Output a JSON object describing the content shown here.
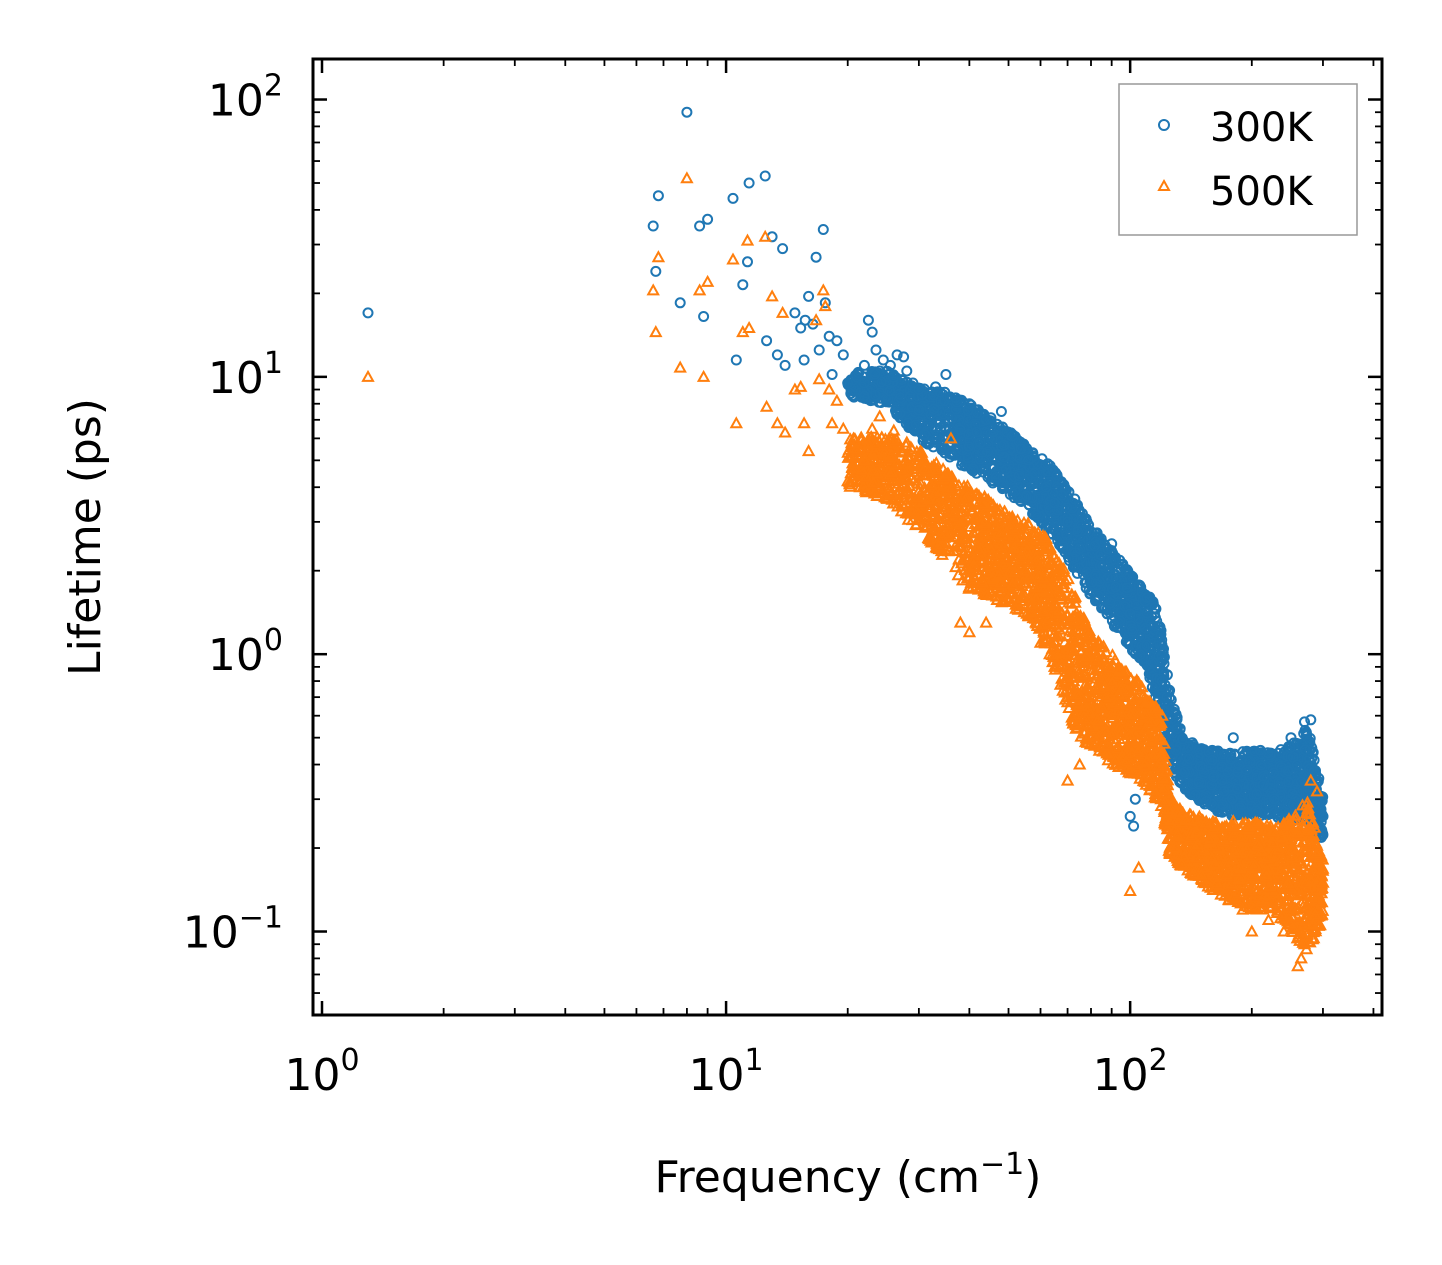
{
  "chart_data": {
    "type": "scatter",
    "title": "",
    "xlabel": "Frequency (cm",
    "xlabel_sup": "−1",
    "xlabel_end": ")",
    "ylabel": "Lifetime (ps)",
    "xscale": "log",
    "yscale": "log",
    "xlim": [
      0.95,
      420
    ],
    "ylim": [
      0.05,
      140
    ],
    "x_ticks": [
      {
        "value": 1,
        "base": "10",
        "exp": "0"
      },
      {
        "value": 10,
        "base": "10",
        "exp": "1"
      },
      {
        "value": 100,
        "base": "10",
        "exp": "2"
      }
    ],
    "y_ticks": [
      {
        "value": 0.1,
        "base": "10",
        "exp": "−1"
      },
      {
        "value": 1,
        "base": "10",
        "exp": "0"
      },
      {
        "value": 10,
        "base": "10",
        "exp": "1"
      },
      {
        "value": 100,
        "base": "10",
        "exp": "2"
      }
    ],
    "legend_position": "top-right",
    "series": [
      {
        "name": "300K",
        "marker": "circle",
        "color": "#1f77b4",
        "points": [
          [
            1.3,
            17
          ],
          [
            6.6,
            35
          ],
          [
            6.7,
            24
          ],
          [
            6.8,
            45
          ],
          [
            7.7,
            18.5
          ],
          [
            8.0,
            90
          ],
          [
            8.6,
            35
          ],
          [
            8.8,
            16.5
          ],
          [
            9.0,
            37
          ],
          [
            10.4,
            44
          ],
          [
            10.6,
            11.5
          ],
          [
            11.0,
            21.5
          ],
          [
            11.3,
            26
          ],
          [
            11.4,
            50
          ],
          [
            12.5,
            53
          ],
          [
            12.6,
            13.5
          ],
          [
            13.0,
            32
          ],
          [
            13.4,
            12
          ],
          [
            13.8,
            29
          ],
          [
            14.0,
            11
          ],
          [
            14.8,
            17
          ],
          [
            15.3,
            15
          ],
          [
            15.6,
            11.5
          ],
          [
            15.7,
            16
          ],
          [
            16.0,
            19.5
          ],
          [
            16.4,
            15.5
          ],
          [
            16.7,
            27
          ],
          [
            17.0,
            12.5
          ],
          [
            17.4,
            34
          ],
          [
            17.6,
            18.5
          ],
          [
            18.0,
            14
          ],
          [
            18.3,
            10.2
          ],
          [
            18.8,
            13.5
          ],
          [
            19.5,
            12
          ],
          [
            20.0,
            9.5
          ],
          [
            21.0,
            10
          ],
          [
            22.0,
            11
          ],
          [
            22.5,
            16
          ],
          [
            23.0,
            14.5
          ],
          [
            23.5,
            12.5
          ],
          [
            24.5,
            11.5
          ],
          [
            25.5,
            11
          ],
          [
            26.5,
            12
          ],
          [
            27.5,
            11.8
          ],
          [
            28.0,
            10.5
          ],
          [
            29.0,
            9.5
          ],
          [
            30.0,
            9
          ],
          [
            33.0,
            9.2
          ],
          [
            35.0,
            10.2
          ],
          [
            37.0,
            8.4
          ],
          [
            40.0,
            8.0
          ],
          [
            44.0,
            7.0
          ],
          [
            48.0,
            7.5
          ],
          [
            51.0,
            6.1
          ],
          [
            56.0,
            5.0
          ],
          [
            58.0,
            4.5
          ],
          [
            62.0,
            4.0
          ],
          [
            65.0,
            3.5
          ],
          [
            70.0,
            3.0
          ],
          [
            75.0,
            2.4
          ],
          [
            88.0,
            2.4
          ],
          [
            90.0,
            2.5
          ],
          [
            100.0,
            1.4
          ],
          [
            110.0,
            1.6
          ],
          [
            120.0,
            0.8
          ],
          [
            123.0,
            0.7
          ],
          [
            100.0,
            0.26
          ],
          [
            102.0,
            0.24
          ],
          [
            103.0,
            0.3
          ],
          [
            130.0,
            0.45
          ],
          [
            140.0,
            0.42
          ],
          [
            180.0,
            0.5
          ],
          [
            210.0,
            0.45
          ],
          [
            250.0,
            0.5
          ],
          [
            270.0,
            0.57
          ],
          [
            280.0,
            0.58
          ],
          [
            295.0,
            0.27
          ],
          [
            300.0,
            0.26
          ]
        ],
        "band": [
          [
            20,
            8.5,
            10.5
          ],
          [
            25,
            8.0,
            10.5
          ],
          [
            30,
            6.0,
            9.2
          ],
          [
            35,
            5.2,
            8.8
          ],
          [
            40,
            4.6,
            8.0
          ],
          [
            45,
            4.2,
            7.2
          ],
          [
            50,
            3.8,
            6.4
          ],
          [
            55,
            3.4,
            5.7
          ],
          [
            60,
            3.0,
            5.2
          ],
          [
            65,
            2.6,
            4.6
          ],
          [
            70,
            2.2,
            4.0
          ],
          [
            75,
            1.9,
            3.4
          ],
          [
            80,
            1.6,
            2.9
          ],
          [
            90,
            1.3,
            2.4
          ],
          [
            100,
            1.05,
            1.95
          ],
          [
            110,
            0.9,
            1.65
          ],
          [
            115,
            0.7,
            1.55
          ],
          [
            120,
            0.5,
            1.2
          ],
          [
            125,
            0.4,
            0.75
          ],
          [
            135,
            0.33,
            0.5
          ],
          [
            150,
            0.29,
            0.46
          ],
          [
            175,
            0.26,
            0.44
          ],
          [
            200,
            0.26,
            0.45
          ],
          [
            225,
            0.26,
            0.44
          ],
          [
            250,
            0.25,
            0.47
          ],
          [
            275,
            0.25,
            0.55
          ],
          [
            300,
            0.21,
            0.31
          ]
        ]
      },
      {
        "name": "500K",
        "marker": "triangle",
        "color": "#ff7f0e",
        "points": [
          [
            1.3,
            10
          ],
          [
            6.6,
            20.5
          ],
          [
            6.7,
            14.5
          ],
          [
            6.8,
            27
          ],
          [
            7.7,
            10.8
          ],
          [
            8.0,
            52
          ],
          [
            8.6,
            20.5
          ],
          [
            8.8,
            10
          ],
          [
            9.0,
            22
          ],
          [
            10.4,
            26.5
          ],
          [
            10.6,
            6.8
          ],
          [
            11.0,
            14.5
          ],
          [
            11.3,
            31
          ],
          [
            11.4,
            15
          ],
          [
            12.5,
            32
          ],
          [
            12.6,
            7.8
          ],
          [
            13.0,
            19.5
          ],
          [
            13.4,
            6.8
          ],
          [
            13.8,
            17
          ],
          [
            14.0,
            6.3
          ],
          [
            14.8,
            9
          ],
          [
            15.3,
            9.2
          ],
          [
            15.6,
            6.8
          ],
          [
            16.0,
            5.4
          ],
          [
            16.7,
            16
          ],
          [
            17.0,
            9.8
          ],
          [
            17.4,
            20.5
          ],
          [
            17.6,
            18
          ],
          [
            18.0,
            9
          ],
          [
            18.3,
            6.8
          ],
          [
            18.8,
            8.2
          ],
          [
            19.5,
            6.5
          ],
          [
            20.0,
            4.2
          ],
          [
            21.0,
            5.5
          ],
          [
            22.0,
            5.0
          ],
          [
            23.0,
            6.5
          ],
          [
            24.0,
            7.2
          ],
          [
            26.0,
            6.4
          ],
          [
            28.0,
            5.8
          ],
          [
            30.0,
            5.2
          ],
          [
            36.0,
            6.0
          ],
          [
            38.0,
            1.3
          ],
          [
            40.0,
            1.2
          ],
          [
            44.0,
            1.3
          ],
          [
            50.0,
            1.6
          ],
          [
            56.0,
            2.2
          ],
          [
            60.0,
            1.1
          ],
          [
            65.0,
            0.9
          ],
          [
            70.0,
            0.35
          ],
          [
            75.0,
            0.4
          ],
          [
            80.0,
            0.55
          ],
          [
            100.0,
            0.14
          ],
          [
            105.0,
            0.17
          ],
          [
            150.0,
            0.16
          ],
          [
            180.0,
            0.25
          ],
          [
            190.0,
            0.12
          ],
          [
            200.0,
            0.1
          ],
          [
            220.0,
            0.11
          ],
          [
            240.0,
            0.1
          ],
          [
            260.0,
            0.075
          ],
          [
            265.0,
            0.08
          ],
          [
            270.0,
            0.09
          ],
          [
            280.0,
            0.35
          ],
          [
            290.0,
            0.32
          ],
          [
            300.0,
            0.15
          ]
        ],
        "band": [
          [
            20,
            4.0,
            6.0
          ],
          [
            25,
            3.6,
            6.2
          ],
          [
            30,
            2.8,
            5.5
          ],
          [
            35,
            2.2,
            4.6
          ],
          [
            40,
            1.7,
            4.0
          ],
          [
            45,
            1.6,
            3.6
          ],
          [
            50,
            1.5,
            3.2
          ],
          [
            55,
            1.4,
            3.0
          ],
          [
            60,
            1.2,
            2.8
          ],
          [
            65,
            0.9,
            2.4
          ],
          [
            70,
            0.6,
            1.9
          ],
          [
            75,
            0.5,
            1.5
          ],
          [
            80,
            0.45,
            1.2
          ],
          [
            90,
            0.4,
            1.0
          ],
          [
            100,
            0.37,
            0.85
          ],
          [
            110,
            0.33,
            0.75
          ],
          [
            120,
            0.28,
            0.6
          ],
          [
            125,
            0.19,
            0.32
          ],
          [
            135,
            0.17,
            0.27
          ],
          [
            150,
            0.15,
            0.26
          ],
          [
            175,
            0.13,
            0.24
          ],
          [
            200,
            0.12,
            0.25
          ],
          [
            225,
            0.12,
            0.24
          ],
          [
            250,
            0.1,
            0.26
          ],
          [
            275,
            0.085,
            0.3
          ],
          [
            300,
            0.11,
            0.18
          ]
        ]
      }
    ]
  }
}
